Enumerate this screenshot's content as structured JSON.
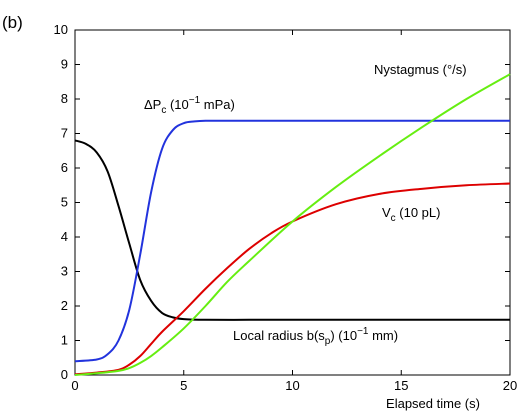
{
  "panel_label": "(b)",
  "chart_data": {
    "type": "line",
    "title": "",
    "xlabel": "Elapsed time (s)",
    "ylabel": "",
    "xlim": [
      0,
      20
    ],
    "ylim": [
      0,
      10
    ],
    "xticks": [
      0,
      5,
      10,
      15,
      20
    ],
    "yticks": [
      0,
      1,
      2,
      3,
      4,
      5,
      6,
      7,
      8,
      9,
      10
    ],
    "grid": false,
    "legend": "none",
    "annotations": {
      "nystagmus": "Nystagmus (°/s)",
      "dpc_main": "ΔP",
      "dpc_sub": "c",
      "dpc_tail": " (10",
      "dpc_sup": "−1",
      "dpc_unit": " mPa)",
      "vc_main": "V",
      "vc_sub": "c",
      "vc_tail": " (10 pL)",
      "radius_main": "Local radius b(s",
      "radius_sub": "p",
      "radius_tail": ") (10",
      "radius_sup": "−1",
      "radius_unit": " mm)"
    },
    "series": [
      {
        "color": "#000000",
        "x": [
          0,
          0.5,
          1,
          1.5,
          2,
          2.5,
          3,
          3.5,
          4,
          4.5,
          5,
          6,
          8,
          10,
          15,
          20
        ],
        "y": [
          6.8,
          6.7,
          6.45,
          5.9,
          4.9,
          3.8,
          2.75,
          2.15,
          1.8,
          1.67,
          1.62,
          1.6,
          1.6,
          1.6,
          1.6,
          1.6
        ]
      },
      {
        "color": "#2233dd",
        "x": [
          0,
          1,
          1.5,
          2,
          2.5,
          3,
          3.5,
          4,
          4.5,
          5,
          5.5,
          6,
          7,
          10,
          15,
          20
        ],
        "y": [
          0.4,
          0.45,
          0.6,
          1.0,
          1.9,
          3.5,
          5.3,
          6.55,
          7.1,
          7.3,
          7.35,
          7.37,
          7.37,
          7.37,
          7.37,
          7.37
        ]
      },
      {
        "color": "#dd0000",
        "x": [
          0,
          1,
          2,
          2.5,
          3,
          3.5,
          4,
          5,
          6,
          7,
          8,
          9,
          10,
          12,
          14,
          16,
          18,
          20
        ],
        "y": [
          0.02,
          0.07,
          0.15,
          0.3,
          0.55,
          0.9,
          1.25,
          1.85,
          2.5,
          3.1,
          3.65,
          4.1,
          4.45,
          4.95,
          5.25,
          5.4,
          5.5,
          5.55
        ]
      },
      {
        "color": "#66ee11",
        "x": [
          0,
          1,
          2,
          2.5,
          3,
          3.5,
          4,
          5,
          6,
          7,
          8,
          10,
          12,
          14,
          16,
          18,
          20
        ],
        "y": [
          0.0,
          0.05,
          0.12,
          0.2,
          0.35,
          0.55,
          0.8,
          1.35,
          2.0,
          2.7,
          3.3,
          4.45,
          5.45,
          6.35,
          7.2,
          8.0,
          8.72
        ]
      }
    ]
  }
}
